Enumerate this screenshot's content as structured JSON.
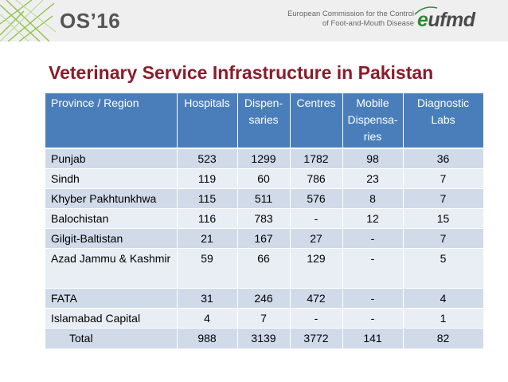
{
  "header": {
    "event_logo": "OS’16",
    "org_line1": "European Commission for the Control",
    "org_line2": "of Foot-and-Mouth Disease",
    "org_logo_prefix": "e",
    "org_logo_suffix": "ufmd"
  },
  "title": "Veterinary Service Infrastructure in Pakistan",
  "table": {
    "columns": [
      "Province / Region",
      "Hospitals",
      "Dispen-saries",
      "Centres",
      "Mobile Dispensa-ries",
      "Diagnostic Labs"
    ],
    "rows": [
      {
        "region": "Punjab",
        "hospitals": "523",
        "dispensaries": "1299",
        "centres": "1782",
        "mobile": "98",
        "labs": "36"
      },
      {
        "region": "Sindh",
        "hospitals": "119",
        "dispensaries": "60",
        "centres": "786",
        "mobile": "23",
        "labs": "7"
      },
      {
        "region": "Khyber Pakhtunkhwa",
        "hospitals": "115",
        "dispensaries": "511",
        "centres": "576",
        "mobile": "8",
        "labs": "7"
      },
      {
        "region": "Balochistan",
        "hospitals": "116",
        "dispensaries": "783",
        "centres": "-",
        "mobile": "12",
        "labs": "15"
      },
      {
        "region": "Gilgit-Baltistan",
        "hospitals": "21",
        "dispensaries": "167",
        "centres": "27",
        "mobile": "-",
        "labs": "7"
      },
      {
        "region": "Azad Jammu & Kashmir",
        "hospitals": "59",
        "dispensaries": "66",
        "centres": "129",
        "mobile": "-",
        "labs": "5"
      },
      {
        "region": "FATA",
        "hospitals": "31",
        "dispensaries": "246",
        "centres": "472",
        "mobile": "-",
        "labs": "4"
      },
      {
        "region": "Islamabad Capital",
        "hospitals": "4",
        "dispensaries": "7",
        "centres": "-",
        "mobile": "-",
        "labs": "1"
      }
    ],
    "total": {
      "region": "Total",
      "hospitals": "988",
      "dispensaries": "3139",
      "centres": "3772",
      "mobile": "141",
      "labs": "82"
    }
  },
  "colors": {
    "title": "#8a1c2a",
    "header_bg": "#4a7ebb",
    "row_odd": "#d0dae9",
    "row_even": "#e9eef5",
    "brand_green": "#2e8b3a"
  }
}
